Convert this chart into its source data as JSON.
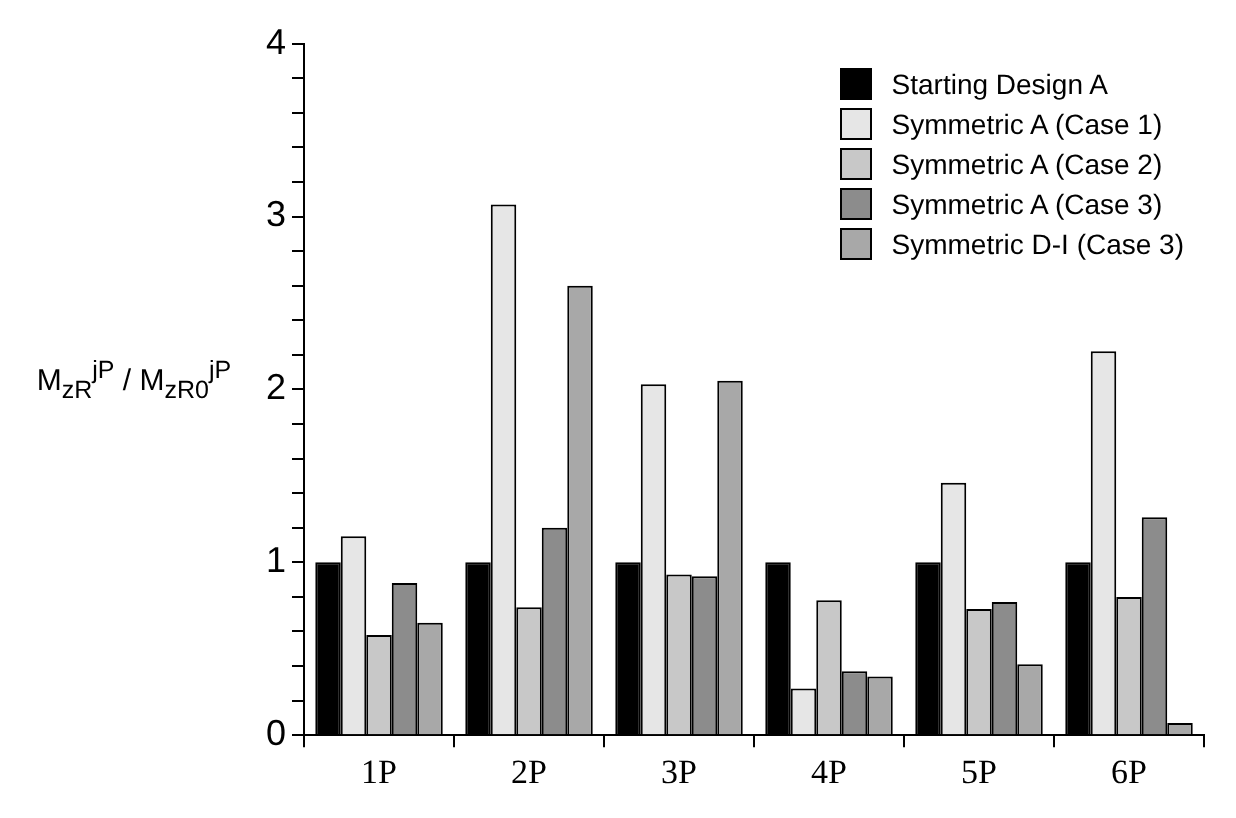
{
  "chart_data": {
    "type": "bar",
    "ylabel": "M$_{zR}$$^{jP}$ / M$_{zR0}$$^{jP}$",
    "categories": [
      "1P",
      "2P",
      "3P",
      "4P",
      "5P",
      "6P"
    ],
    "series": [
      {
        "name": "Starting Design A",
        "color": "#000000",
        "values": [
          1,
          1,
          1,
          1,
          1,
          1
        ]
      },
      {
        "name": "Symmetric A (Case 1)",
        "color": "#e6e6e6",
        "values": [
          1.15,
          3.07,
          2.03,
          0.27,
          1.46,
          2.22
        ]
      },
      {
        "name": "Symmetric A (Case 2)",
        "color": "#c8c8c8",
        "values": [
          0.58,
          0.74,
          0.93,
          0.78,
          0.73,
          0.8
        ]
      },
      {
        "name": "Symmetric A (Case 3)",
        "color": "#8c8c8c",
        "values": [
          0.88,
          1.2,
          0.92,
          0.37,
          0.77,
          1.26
        ]
      },
      {
        "name": "Symmetric D-I (Case 3)",
        "color": "#a8a8a8",
        "values": [
          0.65,
          2.6,
          2.05,
          0.34,
          0.41,
          0.07
        ]
      }
    ],
    "ylim": [
      0,
      4
    ],
    "yticks": [
      0,
      {
        "value": 0.2,
        "label": null
      },
      {
        "value": 0.4,
        "label": null
      },
      {
        "value": 0.6,
        "label": null
      },
      {
        "value": 0.8,
        "label": null
      },
      1,
      {
        "value": 1.2,
        "label": null
      },
      {
        "value": 1.4,
        "label": null
      },
      {
        "value": 1.6,
        "label": null
      },
      {
        "value": 1.8,
        "label": null
      },
      2,
      {
        "value": 2.2,
        "label": null
      },
      {
        "value": 2.4,
        "label": null
      },
      {
        "value": 2.6,
        "label": null
      },
      {
        "value": 2.8,
        "label": null
      },
      3,
      {
        "value": 3.2,
        "label": null
      },
      {
        "value": 3.4,
        "label": null
      },
      {
        "value": 3.6,
        "label": null
      },
      {
        "value": 3.8,
        "label": null
      },
      4
    ],
    "grid": false,
    "legend": "top right"
  }
}
